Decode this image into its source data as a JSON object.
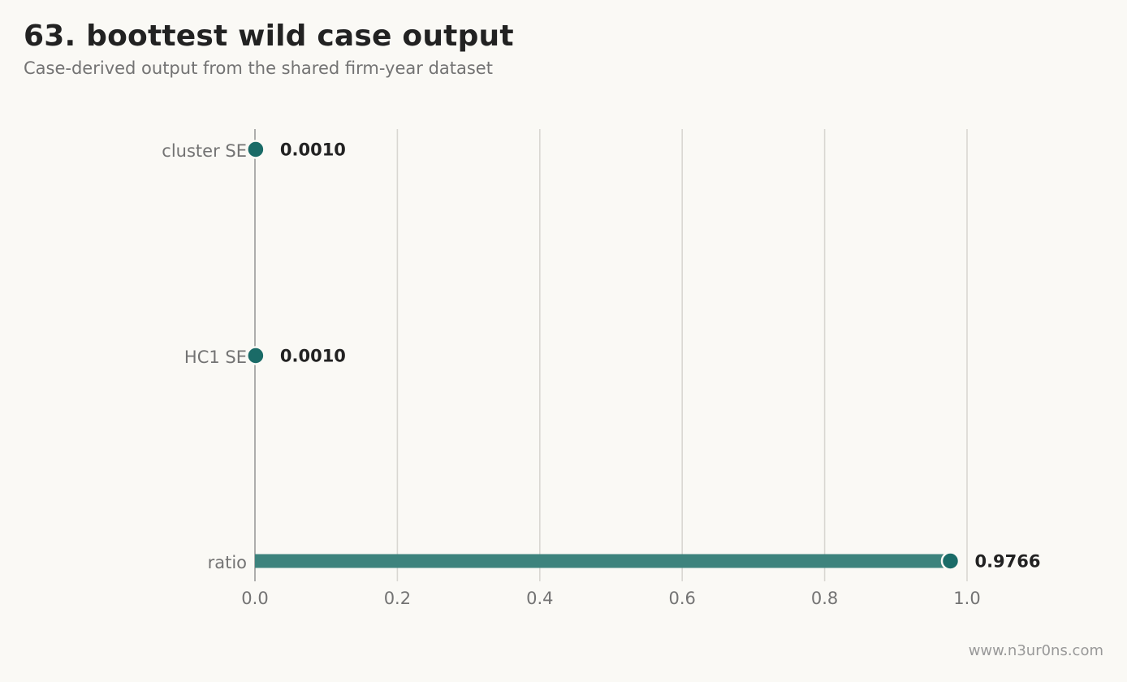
{
  "header": {
    "title": "63. boottest wild case output",
    "subtitle": "Case-derived output from the shared firm-year dataset"
  },
  "footer": {
    "credit": "www.n3ur0ns.com"
  },
  "colors": {
    "accent": "#1a6b67",
    "bar": "#3d837d",
    "grid": "#d9d7d2",
    "axis": "#9a9a9a",
    "background": "#faf9f5"
  },
  "chart_data": {
    "type": "bar",
    "orientation": "horizontal",
    "style": "lollipop",
    "categories": [
      "cluster SE",
      "HC1 SE",
      "ratio"
    ],
    "values": [
      0.001,
      0.001,
      0.9766
    ],
    "value_labels": [
      "0.0010",
      "0.0010",
      "0.9766"
    ],
    "xlim": [
      0,
      1.0
    ],
    "xticks": [
      "0.0",
      "0.2",
      "0.4",
      "0.6",
      "0.8",
      "1.0"
    ],
    "xtick_values": [
      0,
      0.2,
      0.4,
      0.6,
      0.8,
      1.0
    ],
    "grid": "vertical",
    "legend": "none"
  }
}
